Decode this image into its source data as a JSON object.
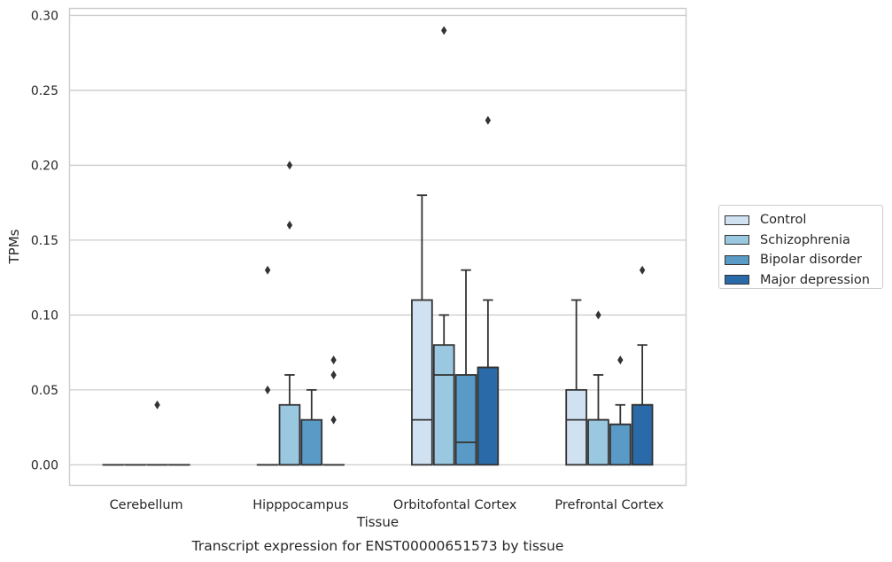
{
  "caption": "Transcript expression for ENST00000651573 by tissue",
  "chart_data": {
    "type": "box",
    "title": "",
    "xlabel": "Tissue",
    "ylabel": "TPMs",
    "ylim": [
      -0.014,
      0.305
    ],
    "yticks": [
      "0.00",
      "0.05",
      "0.10",
      "0.15",
      "0.20",
      "0.25",
      "0.30"
    ],
    "categories": [
      "Cerebellum",
      "Hipppocampus",
      "Orbitofontal Cortex",
      "Prefrontal Cortex"
    ],
    "grid": "horizontal",
    "legend_position": "right",
    "series": [
      {
        "name": "Control",
        "color": "#d0e1f2",
        "boxes": [
          {
            "q1": 0,
            "median": 0,
            "q3": 0,
            "whislo": 0,
            "whishi": 0,
            "fliers": []
          },
          {
            "q1": 0,
            "median": 0,
            "q3": 0,
            "whislo": 0,
            "whishi": 0,
            "fliers": [
              0.05,
              0.13
            ]
          },
          {
            "q1": 0,
            "median": 0.03,
            "q3": 0.11,
            "whislo": 0,
            "whishi": 0.18,
            "fliers": []
          },
          {
            "q1": 0,
            "median": 0.03,
            "q3": 0.05,
            "whislo": 0,
            "whishi": 0.11,
            "fliers": []
          }
        ]
      },
      {
        "name": "Schizophrenia",
        "color": "#9ac8e0",
        "boxes": [
          {
            "q1": 0,
            "median": 0,
            "q3": 0,
            "whislo": 0,
            "whishi": 0,
            "fliers": []
          },
          {
            "q1": 0,
            "median": 0,
            "q3": 0.04,
            "whislo": 0,
            "whishi": 0.06,
            "fliers": [
              0.16,
              0.2
            ]
          },
          {
            "q1": 0,
            "median": 0.06,
            "q3": 0.08,
            "whislo": 0,
            "whishi": 0.1,
            "fliers": [
              0.29
            ]
          },
          {
            "q1": 0,
            "median": 0.03,
            "q3": 0.03,
            "whislo": 0,
            "whishi": 0.06,
            "fliers": [
              0.1
            ]
          }
        ]
      },
      {
        "name": "Bipolar disorder",
        "color": "#5a9ac6",
        "boxes": [
          {
            "q1": 0,
            "median": 0,
            "q3": 0,
            "whislo": 0,
            "whishi": 0,
            "fliers": [
              0.04
            ]
          },
          {
            "q1": 0,
            "median": 0,
            "q3": 0.03,
            "whislo": 0,
            "whishi": 0.05,
            "fliers": []
          },
          {
            "q1": 0,
            "median": 0.015,
            "q3": 0.06,
            "whislo": 0,
            "whishi": 0.13,
            "fliers": []
          },
          {
            "q1": 0,
            "median": 0.027,
            "q3": 0.027,
            "whislo": 0,
            "whishi": 0.04,
            "fliers": [
              0.07
            ]
          }
        ]
      },
      {
        "name": "Major depression",
        "color": "#2a6aa8",
        "boxes": [
          {
            "q1": 0,
            "median": 0,
            "q3": 0,
            "whislo": 0,
            "whishi": 0,
            "fliers": []
          },
          {
            "q1": 0,
            "median": 0,
            "q3": 0,
            "whislo": 0,
            "whishi": 0,
            "fliers": [
              0.03,
              0.06,
              0.07
            ]
          },
          {
            "q1": 0,
            "median": 0.065,
            "q3": 0.065,
            "whislo": 0,
            "whishi": 0.11,
            "fliers": [
              0.23
            ]
          },
          {
            "q1": 0,
            "median": 0.04,
            "q3": 0.04,
            "whislo": 0,
            "whishi": 0.08,
            "fliers": [
              0.13
            ]
          }
        ]
      }
    ]
  }
}
